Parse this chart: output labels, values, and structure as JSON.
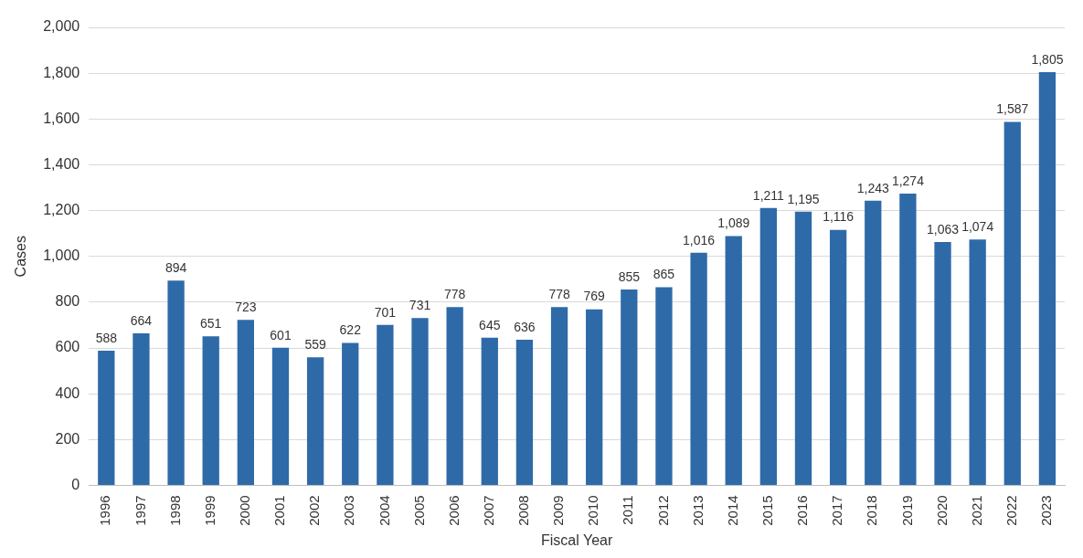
{
  "chart_data": {
    "type": "bar",
    "xlabel": "Fiscal Year",
    "ylabel": "Cases",
    "categories": [
      "1996",
      "1997",
      "1998",
      "1999",
      "2000",
      "2001",
      "2002",
      "2003",
      "2004",
      "2005",
      "2006",
      "2007",
      "2008",
      "2009",
      "2010",
      "2011",
      "2012",
      "2013",
      "2014",
      "2015",
      "2016",
      "2017",
      "2018",
      "2019",
      "2020",
      "2021",
      "2022",
      "2023"
    ],
    "values": [
      588,
      664,
      894,
      651,
      723,
      601,
      559,
      622,
      701,
      731,
      778,
      645,
      636,
      778,
      769,
      855,
      865,
      1016,
      1089,
      1211,
      1195,
      1116,
      1243,
      1274,
      1063,
      1074,
      1587,
      1805
    ],
    "value_labels": [
      "588",
      "664",
      "894",
      "651",
      "723",
      "601",
      "559",
      "622",
      "701",
      "731",
      "778",
      "645",
      "636",
      "778",
      "769",
      "855",
      "865",
      "1,016",
      "1,089",
      "1,211",
      "1,195",
      "1,116",
      "1,243",
      "1,274",
      "1,063",
      "1,074",
      "1,587",
      "1,805"
    ],
    "color": "#2f6aa8",
    "ylim": [
      0,
      2000
    ],
    "yticks": [
      0,
      200,
      400,
      600,
      800,
      {
        "value": 1000,
        "label": "1,000"
      },
      {
        "value": 1200,
        "label": "1,200"
      },
      {
        "value": 1400,
        "label": "1,400"
      },
      {
        "value": 1600,
        "label": "1,600"
      },
      {
        "value": 1800,
        "label": "1,800"
      },
      {
        "value": 2000,
        "label": "2,000"
      }
    ],
    "grid": "y"
  }
}
